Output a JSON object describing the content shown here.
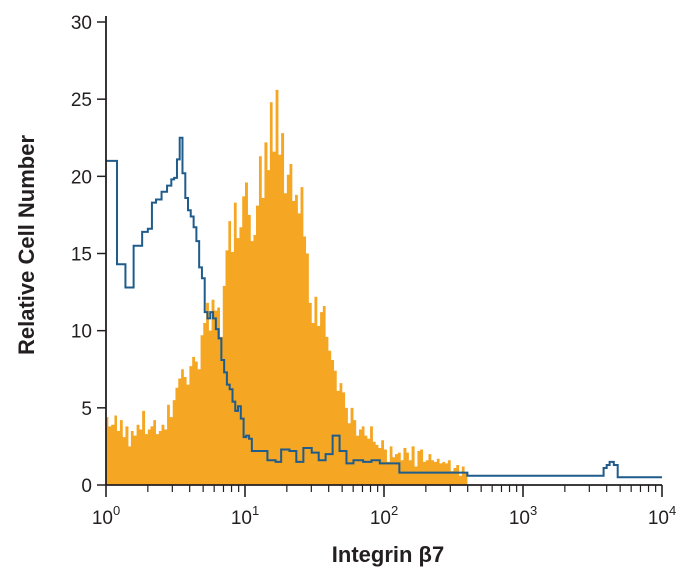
{
  "chart_data": {
    "type": "area",
    "title": "",
    "xlabel": "Integrin β7",
    "ylabel": "Relative Cell Number",
    "x_scale": "log",
    "xlim": [
      1,
      10000
    ],
    "ylim": [
      0,
      30
    ],
    "x_ticks": [
      {
        "value": 1,
        "base": "10",
        "exp": "0"
      },
      {
        "value": 10,
        "base": "10",
        "exp": "1"
      },
      {
        "value": 100,
        "base": "10",
        "exp": "2"
      },
      {
        "value": 1000,
        "base": "10",
        "exp": "3"
      },
      {
        "value": 10000,
        "base": "10",
        "exp": "4"
      }
    ],
    "y_ticks": [
      "0",
      "5",
      "10",
      "15",
      "20",
      "25",
      "30"
    ],
    "grid": false,
    "legend": "none",
    "series": [
      {
        "style": "filled",
        "color": "#f5a623",
        "x": [
          1,
          1.04,
          1.09,
          1.15,
          1.2,
          1.26,
          1.32,
          1.38,
          1.45,
          1.51,
          1.58,
          1.66,
          1.74,
          1.82,
          1.91,
          2,
          2.09,
          2.19,
          2.29,
          2.4,
          2.51,
          2.63,
          2.75,
          2.88,
          3.02,
          3.16,
          3.31,
          3.47,
          3.63,
          3.8,
          3.98,
          4.17,
          4.37,
          4.57,
          4.79,
          5.01,
          5.25,
          5.5,
          5.75,
          6.03,
          6.31,
          6.61,
          6.92,
          7.24,
          7.59,
          7.94,
          8.32,
          8.71,
          9.12,
          9.55,
          10,
          10.5,
          11,
          11.5,
          12,
          12.6,
          13.2,
          13.8,
          14.5,
          15.1,
          15.8,
          16.6,
          17.4,
          18.2,
          19.1,
          20,
          20.9,
          21.9,
          22.9,
          24,
          25.1,
          26.3,
          27.5,
          28.8,
          30.2,
          31.6,
          33.1,
          34.7,
          36.3,
          38,
          39.8,
          41.7,
          43.7,
          45.7,
          47.9,
          50.1,
          52.5,
          55,
          57.5,
          60.3,
          63.1,
          66.1,
          69.2,
          72.4,
          75.9,
          79.4,
          83.2,
          87.1,
          91.2,
          95.5,
          100,
          105,
          110,
          115,
          120,
          126,
          132,
          138,
          145,
          151,
          158,
          166,
          174,
          182,
          191,
          200,
          209,
          219,
          229,
          240,
          251,
          263,
          275,
          288,
          302,
          316,
          331,
          347,
          363,
          380,
          398
        ],
        "y": [
          4.4,
          3.8,
          3.9,
          4.5,
          3.5,
          4.2,
          3.1,
          3.8,
          2.5,
          3.5,
          3.2,
          3.9,
          3.6,
          4.8,
          3.3,
          3.6,
          3.8,
          4.2,
          3.3,
          3.5,
          3.9,
          3.6,
          5.2,
          4.4,
          5.5,
          6.3,
          6.9,
          7.5,
          7.0,
          6.5,
          7.7,
          8.3,
          8.0,
          7.5,
          9.7,
          10.5,
          11.8,
          10.0,
          12.0,
          11.3,
          11.5,
          9.6,
          12.9,
          15.2,
          17.1,
          15.1,
          18.3,
          16.0,
          16.7,
          18.7,
          19.6,
          17.5,
          15.8,
          16.2,
          18.1,
          21.3,
          18.6,
          22.2,
          20.4,
          24.8,
          21.6,
          25.6,
          21.4,
          22.8,
          18.9,
          20.1,
          20.8,
          18.4,
          18.8,
          17.6,
          19.3,
          16.1,
          15.0,
          11.8,
          10.5,
          12.2,
          10.3,
          11.2,
          11.6,
          9.6,
          8.7,
          8.1,
          7.4,
          6.1,
          6.6,
          6.0,
          5.0,
          4.0,
          5.0,
          4.2,
          3.2,
          3.6,
          3.8,
          3.2,
          3.0,
          3.8,
          2.8,
          2.6,
          2.4,
          2.9,
          2.3,
          1.5,
          2.5,
          1.8,
          2.0,
          2.1,
          1.6,
          2.4,
          2.1,
          1.6,
          2.5,
          1.2,
          2.2,
          2.3,
          1.5,
          1.6,
          2.0,
          1.6,
          1.5,
          1.7,
          1.4,
          1.5,
          1.4,
          1.6,
          0.9,
          1.1,
          1.3,
          0.6,
          1.2,
          0.8,
          0
        ]
      },
      {
        "style": "outline",
        "color": "#1f5c8b",
        "x": [
          1,
          1.2,
          1.38,
          1.58,
          1.82,
          2,
          2.14,
          2.29,
          2.51,
          2.75,
          2.95,
          3.09,
          3.24,
          3.39,
          3.55,
          3.72,
          3.89,
          4.07,
          4.27,
          4.47,
          4.68,
          4.9,
          5.13,
          5.37,
          5.62,
          5.89,
          6.17,
          6.46,
          6.76,
          7.08,
          7.41,
          7.76,
          8.13,
          8.51,
          8.91,
          9.33,
          9.77,
          10.2,
          10.7,
          11.2,
          12.6,
          14.5,
          16.6,
          18.2,
          20.9,
          23.4,
          26.3,
          30.2,
          33.9,
          38,
          42.7,
          47.9,
          53.7,
          60.3,
          70.8,
          81.3,
          93.3,
          107,
          129,
          398,
          1000,
          3800,
          4000,
          4200,
          4500,
          4800,
          5000,
          5300,
          10000
        ],
        "y": [
          21,
          14.3,
          12.8,
          15.5,
          16.4,
          16.6,
          18.3,
          18.5,
          19.0,
          19.4,
          19.8,
          19.9,
          21.1,
          22.5,
          20.2,
          18.6,
          17.8,
          17.4,
          16.7,
          15.8,
          14.1,
          13.4,
          11.2,
          10.8,
          11.2,
          10.8,
          10.1,
          9.5,
          8.1,
          7.3,
          6.5,
          6.2,
          5.4,
          4.8,
          5.1,
          4.3,
          3.1,
          3.2,
          3.0,
          2.2,
          2.2,
          1.6,
          1.5,
          2.3,
          2.2,
          1.5,
          2.4,
          2.1,
          1.6,
          2.0,
          3.2,
          2.2,
          1.4,
          1.6,
          1.5,
          1.6,
          1.4,
          1.4,
          0.8,
          0.6,
          0.6,
          1.1,
          1.3,
          1.5,
          1.3,
          0.5,
          0.5,
          0.5,
          0.5
        ]
      }
    ]
  }
}
